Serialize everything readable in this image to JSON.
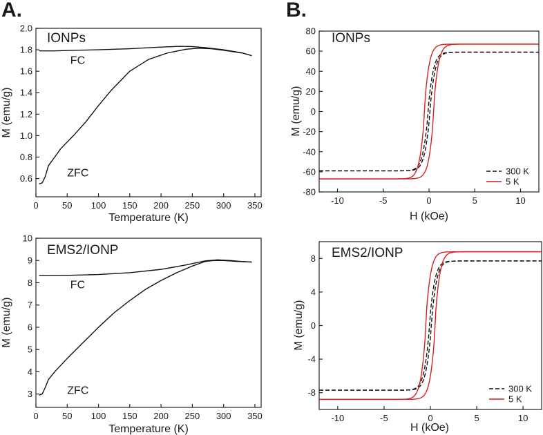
{
  "figure": {
    "panel_labels": [
      "A.",
      "B."
    ]
  },
  "colors": {
    "axis": "#222222",
    "curve_black": "#111111",
    "curve_red": "#d42020"
  },
  "chart_data": [
    {
      "id": "ionps-zfc-fc",
      "type": "line",
      "title": "IONPs",
      "xlabel": "Temperature (K)",
      "ylabel": "M (emu/g)",
      "xlim": [
        0,
        360
      ],
      "ylim": [
        0.43,
        2.0
      ],
      "xticks": [
        0,
        50,
        100,
        150,
        200,
        250,
        300,
        350
      ],
      "yticks": [
        0.6,
        0.8,
        1.0,
        1.2,
        1.4,
        1.6,
        1.8,
        2.0
      ],
      "ytick_labels": [
        "0.6",
        "0.8",
        "1.0",
        "1.2",
        "1.4",
        "1.6",
        "1.8",
        "2.0"
      ],
      "annotations": [
        {
          "text": "FC",
          "x": 55,
          "y": 1.67
        },
        {
          "text": "ZFC",
          "x": 50,
          "y": 0.62
        }
      ],
      "series": [
        {
          "name": "FC",
          "color": "#111111",
          "dash": "solid",
          "x": [
            5,
            30,
            60,
            100,
            150,
            200,
            230,
            250,
            270,
            300,
            330,
            345
          ],
          "y": [
            1.79,
            1.79,
            1.795,
            1.8,
            1.81,
            1.825,
            1.832,
            1.83,
            1.82,
            1.8,
            1.77,
            1.745
          ]
        },
        {
          "name": "ZFC",
          "color": "#111111",
          "dash": "solid",
          "x": [
            5,
            10,
            15,
            20,
            30,
            40,
            60,
            80,
            100,
            120,
            150,
            180,
            210,
            240,
            260,
            280,
            300,
            330,
            345
          ],
          "y": [
            0.55,
            0.56,
            0.62,
            0.72,
            0.8,
            0.88,
            1.0,
            1.13,
            1.28,
            1.42,
            1.6,
            1.71,
            1.77,
            1.805,
            1.815,
            1.81,
            1.795,
            1.77,
            1.745
          ]
        }
      ]
    },
    {
      "id": "ionps-hysteresis",
      "type": "line",
      "title": "IONPs",
      "xlabel": "H (kOe)",
      "ylabel": "M (emu/g)",
      "xlim": [
        -12,
        12
      ],
      "ylim": [
        -80,
        80
      ],
      "xticks": [
        -10,
        -5,
        0,
        5,
        10
      ],
      "yticks": [
        -80,
        -60,
        -40,
        -20,
        0,
        20,
        40,
        60,
        80
      ],
      "ytick_labels": [
        "-80",
        "-60",
        "-40",
        "-20",
        "0",
        "20",
        "40",
        "60",
        "80"
      ],
      "legend": {
        "position": "bottom-right",
        "entries": [
          "300 K",
          "5 K"
        ]
      },
      "series": [
        {
          "name": "300 K",
          "color": "#111111",
          "dash": "dashed",
          "Ms": 59,
          "a": 0.75,
          "p": 0.82,
          "Hc": 0.1
        },
        {
          "name": "5 K",
          "color": "#d42020",
          "dash": "solid",
          "Ms": 67,
          "a": 0.72,
          "p": 0.75,
          "Hc": 0.5
        }
      ]
    },
    {
      "id": "ems2-zfc-fc",
      "type": "line",
      "title": "EMS2/IONP",
      "xlabel": "Temperature (K)",
      "ylabel": "M (emu/g)",
      "xlim": [
        0,
        360
      ],
      "ylim": [
        2.4,
        10
      ],
      "xticks": [
        0,
        50,
        100,
        150,
        200,
        250,
        300,
        350
      ],
      "yticks": [
        3,
        4,
        5,
        6,
        7,
        8,
        9,
        10
      ],
      "ytick_labels": [
        "3",
        "4",
        "5",
        "6",
        "7",
        "8",
        "9",
        "10"
      ],
      "annotations": [
        {
          "text": "FC",
          "x": 55,
          "y": 7.75
        },
        {
          "text": "ZFC",
          "x": 50,
          "y": 3.0
        }
      ],
      "series": [
        {
          "name": "FC",
          "color": "#111111",
          "dash": "solid",
          "x": [
            5,
            50,
            100,
            150,
            200,
            240,
            270,
            290,
            310,
            330,
            345
          ],
          "y": [
            8.32,
            8.33,
            8.37,
            8.45,
            8.6,
            8.8,
            8.98,
            9.03,
            9.0,
            8.95,
            8.93
          ]
        },
        {
          "name": "ZFC",
          "color": "#111111",
          "dash": "solid",
          "x": [
            5,
            10,
            15,
            20,
            30,
            50,
            75,
            100,
            125,
            150,
            175,
            200,
            225,
            250,
            270,
            285,
            300,
            320,
            345
          ],
          "y": [
            2.95,
            3.0,
            3.3,
            3.65,
            4.0,
            4.6,
            5.3,
            6.0,
            6.65,
            7.2,
            7.7,
            8.1,
            8.45,
            8.75,
            8.95,
            9.0,
            9.0,
            8.96,
            8.93
          ]
        }
      ]
    },
    {
      "id": "ems2-hysteresis",
      "type": "line",
      "title": "EMS2/IONP",
      "xlabel": "H (kOe)",
      "ylabel": "M (emu/g)",
      "xlim": [
        -12,
        12
      ],
      "ylim": [
        -10,
        10
      ],
      "xticks": [
        -10,
        -5,
        0,
        5,
        10
      ],
      "yticks": [
        -8,
        -4,
        0,
        4,
        8
      ],
      "ytick_labels": [
        "-8",
        "-4",
        "0",
        "4",
        "8"
      ],
      "legend": {
        "position": "bottom-right",
        "entries": [
          "300 K",
          "5 K"
        ]
      },
      "series": [
        {
          "name": "300 K",
          "color": "#111111",
          "dash": "dashed",
          "Ms": 7.7,
          "a": 0.75,
          "p": 0.82,
          "Hc": 0.1
        },
        {
          "name": "5 K",
          "color": "#d42020",
          "dash": "solid",
          "Ms": 8.8,
          "a": 0.72,
          "p": 0.75,
          "Hc": 0.5
        }
      ]
    }
  ]
}
